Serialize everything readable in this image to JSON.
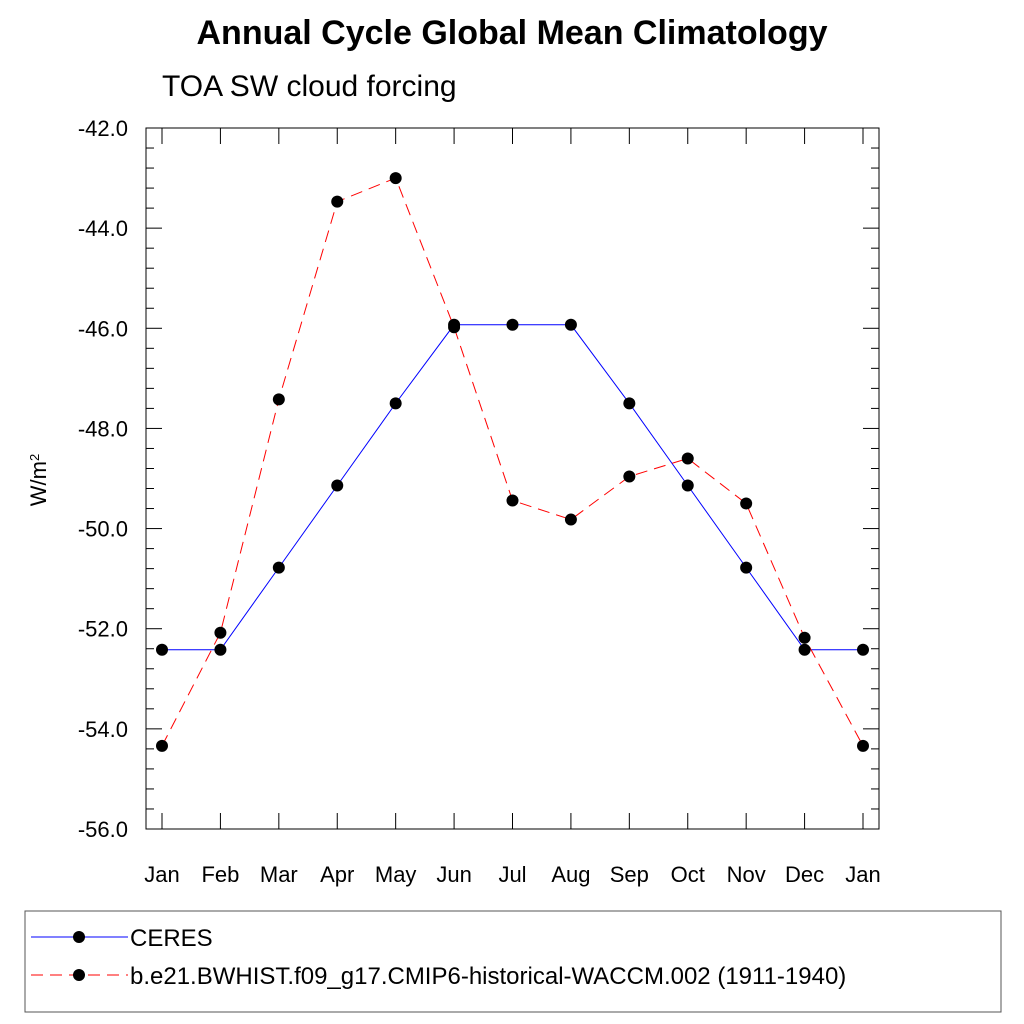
{
  "chart_data": {
    "type": "line",
    "title": "Annual Cycle Global Mean Climatology",
    "subtitle": "TOA SW cloud forcing",
    "ylabel": "W/m",
    "ylabel_superscript": "2",
    "xlabel": "",
    "ylim": [
      -56.0,
      -42.0
    ],
    "ytick_values": [
      -56,
      -54,
      -52,
      -50,
      -48,
      -46,
      -44,
      -42
    ],
    "yticks": [
      "-56.0",
      "-54.0",
      "-52.0",
      "-50.0",
      "-48.0",
      "-46.0",
      "-44.0",
      "-42.0"
    ],
    "categories": [
      "Jan",
      "Feb",
      "Mar",
      "Apr",
      "May",
      "Jun",
      "Jul",
      "Aug",
      "Sep",
      "Oct",
      "Nov",
      "Dec",
      "Jan"
    ],
    "grid": false,
    "legend_position": "bottom",
    "series": [
      {
        "name": "CERES",
        "color": "#0000ff",
        "line_style": "solid",
        "values": [
          -52.42,
          -52.42,
          -50.78,
          -49.14,
          -47.5,
          -45.93,
          -45.93,
          -45.93,
          -47.5,
          -49.14,
          -50.78,
          -52.42,
          -52.42
        ]
      },
      {
        "name": "b.e21.BWHIST.f09_g17.CMIP6-historical-WACCM.002 (1911-1940)",
        "color": "#ff0000",
        "line_style": "dashed",
        "values": [
          -54.34,
          -52.08,
          -47.42,
          -43.47,
          -43.0,
          -45.98,
          -49.44,
          -49.82,
          -48.96,
          -48.6,
          -49.5,
          -52.18,
          -54.34
        ]
      }
    ]
  }
}
